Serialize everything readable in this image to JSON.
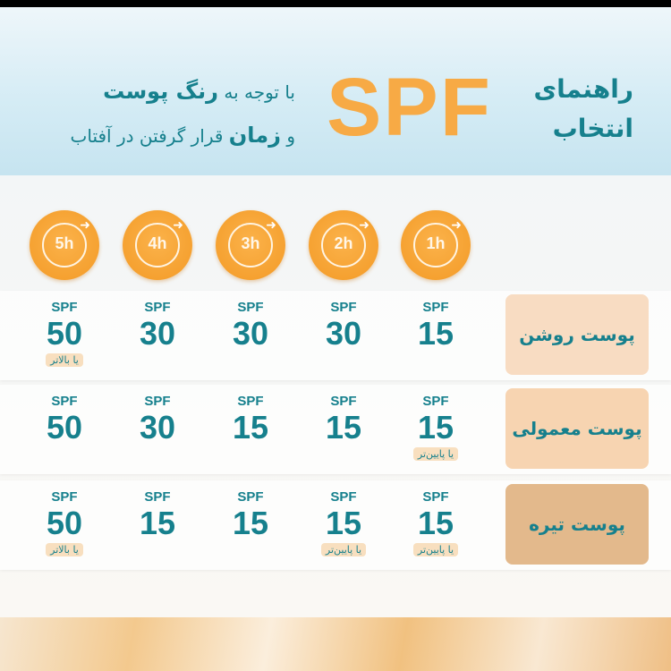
{
  "header": {
    "title_line1": "راهنمای",
    "title_line2": "انتخاب",
    "brand": "SPF",
    "subtitle_line1_pre": "با توجه به",
    "subtitle_line1_bold": "رنگ پوست",
    "subtitle_line2_pre": "و",
    "subtitle_line2_bold": "زمان",
    "subtitle_line2_post": "قرار گرفتن در آفتاب"
  },
  "hours": [
    "1h",
    "2h",
    "3h",
    "4h",
    "5h"
  ],
  "rows": [
    {
      "skin": "پوست روشن",
      "color": "#f8dcc2",
      "cells": [
        {
          "spf": "SPF",
          "value": "15",
          "note": ""
        },
        {
          "spf": "SPF",
          "value": "30",
          "note": ""
        },
        {
          "spf": "SPF",
          "value": "30",
          "note": ""
        },
        {
          "spf": "SPF",
          "value": "30",
          "note": ""
        },
        {
          "spf": "SPF",
          "value": "50",
          "note": "یا بالاتر"
        }
      ]
    },
    {
      "skin": "پوست معمولی",
      "color": "#f7d4b1",
      "cells": [
        {
          "spf": "SPF",
          "value": "15",
          "note": "یا پایین‌تر"
        },
        {
          "spf": "SPF",
          "value": "15",
          "note": ""
        },
        {
          "spf": "SPF",
          "value": "15",
          "note": ""
        },
        {
          "spf": "SPF",
          "value": "30",
          "note": ""
        },
        {
          "spf": "SPF",
          "value": "50",
          "note": ""
        }
      ]
    },
    {
      "skin": "پوست تیره",
      "color": "#e3b98c",
      "cells": [
        {
          "spf": "SPF",
          "value": "15",
          "note": "یا پایین‌تر"
        },
        {
          "spf": "SPF",
          "value": "15",
          "note": "یا پایین‌تر"
        },
        {
          "spf": "SPF",
          "value": "15",
          "note": ""
        },
        {
          "spf": "SPF",
          "value": "15",
          "note": ""
        },
        {
          "spf": "SPF",
          "value": "50",
          "note": "یا بالاتر"
        }
      ]
    }
  ],
  "colors": {
    "teal": "#16808d",
    "orange": "#f7aa45"
  }
}
